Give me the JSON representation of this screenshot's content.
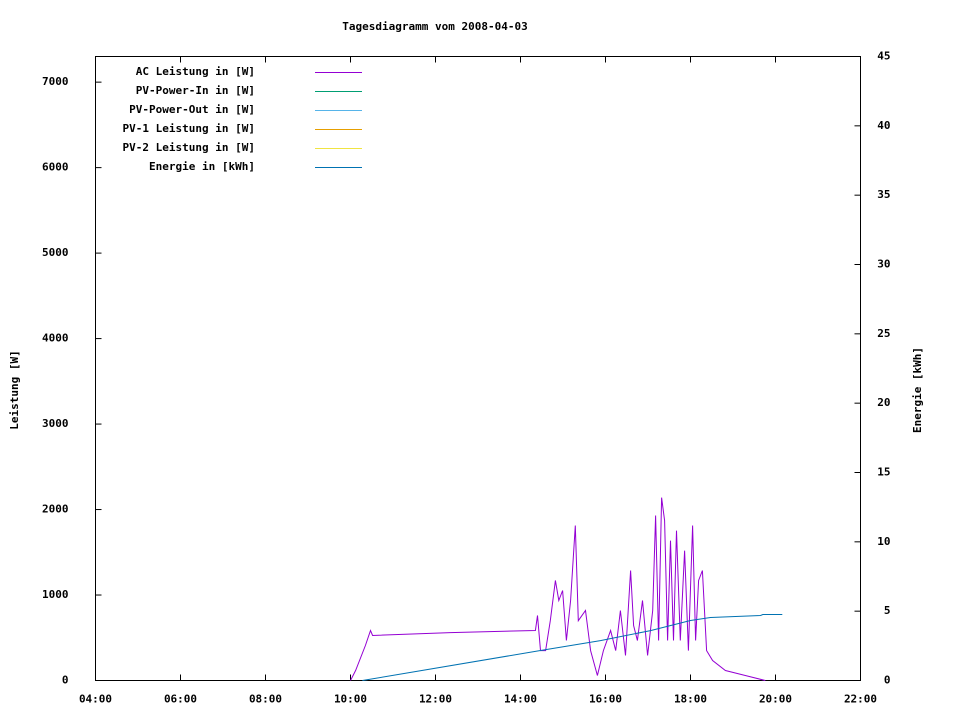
{
  "chart_data": {
    "type": "line",
    "title": "Tagesdiagramm vom 2008-04-03",
    "ylabel": "Leistung [W]",
    "y2label": "Energie [kWh]",
    "xlim": [
      4,
      22
    ],
    "xticks": [
      {
        "value": 4,
        "label": "04:00"
      },
      {
        "value": 6,
        "label": "06:00"
      },
      {
        "value": 8,
        "label": "08:00"
      },
      {
        "value": 10,
        "label": "10:00"
      },
      {
        "value": 12,
        "label": "12:00"
      },
      {
        "value": 14,
        "label": "14:00"
      },
      {
        "value": 16,
        "label": "16:00"
      },
      {
        "value": 18,
        "label": "18:00"
      },
      {
        "value": 20,
        "label": "20:00"
      },
      {
        "value": 22,
        "label": "22:00"
      }
    ],
    "ylim": [
      0,
      7300
    ],
    "yticks": [
      0,
      1000,
      2000,
      3000,
      4000,
      5000,
      6000,
      7000
    ],
    "y2lim": [
      0,
      45
    ],
    "y2ticks": [
      0,
      5,
      10,
      15,
      20,
      25,
      30,
      35,
      40,
      45
    ],
    "legend": "top-left",
    "series": [
      {
        "name": "AC Leistung in [W]",
        "color": "#9400d3",
        "x": [
          10.0,
          10.12,
          10.35,
          10.47,
          10.52,
          12.35,
          14.35,
          14.4,
          14.47,
          14.59,
          14.7,
          14.82,
          14.9,
          14.99,
          15.08,
          15.18,
          15.29,
          15.36,
          15.53,
          15.65,
          15.81,
          15.95,
          16.12,
          16.24,
          16.35,
          16.47,
          16.59,
          16.66,
          16.75,
          16.87,
          16.99,
          17.11,
          17.18,
          17.25,
          17.32,
          17.39,
          17.46,
          17.53,
          17.6,
          17.67,
          17.76,
          17.86,
          17.95,
          18.05,
          18.12,
          18.19,
          18.28,
          18.38,
          18.52,
          18.82,
          19.29,
          19.76
        ],
        "values": [
          0,
          117,
          409,
          585,
          526,
          560,
          585,
          760,
          350,
          350,
          700,
          1170,
          936,
          1053,
          468,
          936,
          1813,
          700,
          819,
          350,
          58,
          350,
          585,
          350,
          819,
          292,
          1287,
          643,
          468,
          936,
          292,
          819,
          1930,
          468,
          2140,
          1871,
          468,
          1637,
          468,
          1754,
          468,
          1520,
          350,
          1813,
          468,
          1170,
          1287,
          350,
          234,
          117,
          58,
          0
        ]
      },
      {
        "name": "PV-Power-In in [W]",
        "color": "#009e73",
        "x": [],
        "values": []
      },
      {
        "name": "PV-Power-Out in [W]",
        "color": "#56b4e9",
        "x": [],
        "values": []
      },
      {
        "name": "PV-1 Leistung in [W]",
        "color": "#e69f00",
        "x": [],
        "values": []
      },
      {
        "name": "PV-2 Leistung in [W]",
        "color": "#f0e442",
        "x": [],
        "values": []
      },
      {
        "name": "Energie in [kWh]",
        "color": "#0072b2",
        "axis": "y2",
        "x": [
          10.28,
          14.47,
          15.88,
          17.06,
          18.0,
          18.47,
          19.65,
          19.7,
          20.16
        ],
        "values": [
          0,
          2.16,
          2.88,
          3.6,
          4.33,
          4.54,
          4.69,
          4.76,
          4.76
        ]
      }
    ]
  }
}
